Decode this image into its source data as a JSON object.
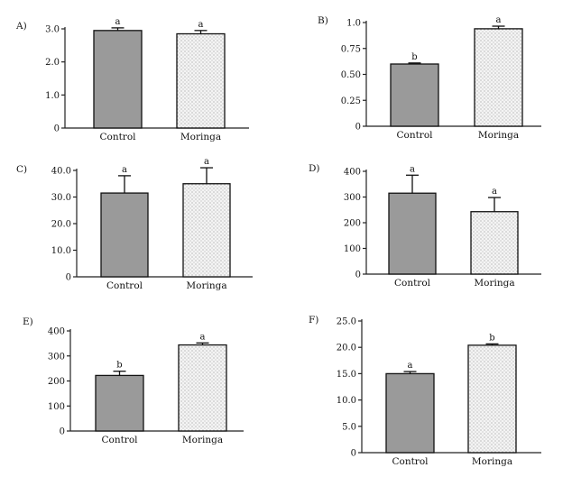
{
  "chart_data": [
    {
      "panel": "A)",
      "type": "bar",
      "categories": [
        "Control",
        "Moringa"
      ],
      "values": [
        2.95,
        2.85
      ],
      "errors": [
        0.08,
        0.1
      ],
      "letters": [
        "a",
        "a"
      ],
      "ylim": [
        0,
        3.0
      ],
      "yticks": [
        0,
        1.0,
        2.0,
        3.0
      ],
      "ytick_labels": [
        "0",
        "1.0",
        "2.0",
        "3.0"
      ],
      "colors": [
        "#9a9a9a",
        "#eeeeee"
      ]
    },
    {
      "panel": "B)",
      "type": "bar",
      "categories": [
        "Control",
        "Moringa"
      ],
      "values": [
        0.6,
        0.94
      ],
      "errors": [
        0.01,
        0.025
      ],
      "letters": [
        "b",
        "a"
      ],
      "ylim": [
        0,
        1.0
      ],
      "yticks": [
        0,
        0.25,
        0.5,
        0.75,
        1.0
      ],
      "ytick_labels": [
        "0",
        "0.25",
        "0.50",
        "0.75",
        "1.0"
      ],
      "colors": [
        "#9a9a9a",
        "#eeeeee"
      ]
    },
    {
      "panel": "C)",
      "type": "bar",
      "categories": [
        "Control",
        "Moringa"
      ],
      "values": [
        31.5,
        35.0
      ],
      "errors": [
        6.5,
        6.0
      ],
      "letters": [
        "a",
        "a"
      ],
      "ylim": [
        0,
        40.0
      ],
      "yticks": [
        0,
        10.0,
        20.0,
        30.0,
        40.0
      ],
      "ytick_labels": [
        "0",
        "10.0",
        "20.0",
        "30.0",
        "40.0"
      ],
      "colors": [
        "#9a9a9a",
        "#eeeeee"
      ]
    },
    {
      "panel": "D)",
      "type": "bar",
      "categories": [
        "Control",
        "Moringa"
      ],
      "values": [
        315,
        243
      ],
      "errors": [
        70,
        55
      ],
      "letters": [
        "a",
        "a"
      ],
      "ylim": [
        0,
        400
      ],
      "yticks": [
        0,
        100,
        200,
        300,
        400
      ],
      "ytick_labels": [
        "0",
        "100",
        "200",
        "300",
        "400"
      ],
      "colors": [
        "#9a9a9a",
        "#eeeeee"
      ]
    },
    {
      "panel": "E)",
      "type": "bar",
      "categories": [
        "Control",
        "Moringa"
      ],
      "values": [
        222,
        344
      ],
      "errors": [
        17,
        8
      ],
      "letters": [
        "b",
        "a"
      ],
      "ylim": [
        0,
        400
      ],
      "yticks": [
        0,
        100,
        200,
        300,
        400
      ],
      "ytick_labels": [
        "0",
        "100",
        "200",
        "300",
        "400"
      ],
      "colors": [
        "#9a9a9a",
        "#eeeeee"
      ]
    },
    {
      "panel": "F)",
      "type": "bar",
      "categories": [
        "Control",
        "Moringa"
      ],
      "values": [
        15.0,
        20.4
      ],
      "errors": [
        0.4,
        0.25
      ],
      "letters": [
        "a",
        "b"
      ],
      "ylim": [
        0,
        25.0
      ],
      "yticks": [
        0,
        5.0,
        10.0,
        15.0,
        20.0,
        25.0
      ],
      "ytick_labels": [
        "0",
        "5.0",
        "10.0",
        "15.0",
        "20.0",
        "25.0"
      ],
      "colors": [
        "#9a9a9a",
        "#eeeeee"
      ]
    }
  ]
}
